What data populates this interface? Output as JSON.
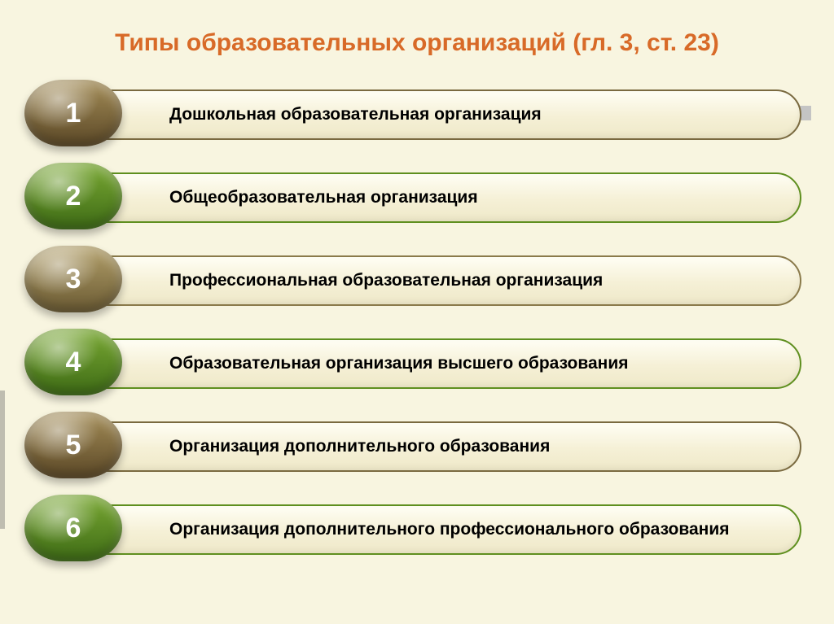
{
  "background_color": "#f8f5e0",
  "title": {
    "text": "Типы образовательных организаций (гл. 3, ст. 23)",
    "color": "#d86a28",
    "fontsize": 30
  },
  "top_bar_color": "#c4c4c4",
  "left_edge_color": "#575757",
  "pill": {
    "bg_top": "#fffef4",
    "bg_bottom": "#efe9c9",
    "height": 62,
    "label_fontsize": 21,
    "label_color": "#000000"
  },
  "badge": {
    "number_fontsize": 34,
    "number_color": "#ffffff"
  },
  "items": [
    {
      "n": "1",
      "label": "Дошкольная образовательная организация",
      "border_color": "#7a6a40",
      "badge_gradient_top": "#a48d57",
      "badge_gradient_bottom": "#5b4827"
    },
    {
      "n": "2",
      "label": "Общеобразовательная организация",
      "border_color": "#5f8f1f",
      "badge_gradient_top": "#7aa933",
      "badge_gradient_bottom": "#3e6b16"
    },
    {
      "n": "3",
      "label": "Профессиональная образовательная организация",
      "border_color": "#8a7a4a",
      "badge_gradient_top": "#b3a06a",
      "badge_gradient_bottom": "#6a5a33"
    },
    {
      "n": "4",
      "label": "Образовательная организация высшего образования",
      "border_color": "#5f8f1f",
      "badge_gradient_top": "#7aa933",
      "badge_gradient_bottom": "#3e6b16"
    },
    {
      "n": "5",
      "label": "Организация дополнительного образования",
      "border_color": "#7a6a40",
      "badge_gradient_top": "#a48d57",
      "badge_gradient_bottom": "#5b4827"
    },
    {
      "n": "6",
      "label": "Организация дополнительного профессионального образования",
      "border_color": "#5f8f1f",
      "badge_gradient_top": "#7aa933",
      "badge_gradient_bottom": "#3e6b16"
    }
  ]
}
